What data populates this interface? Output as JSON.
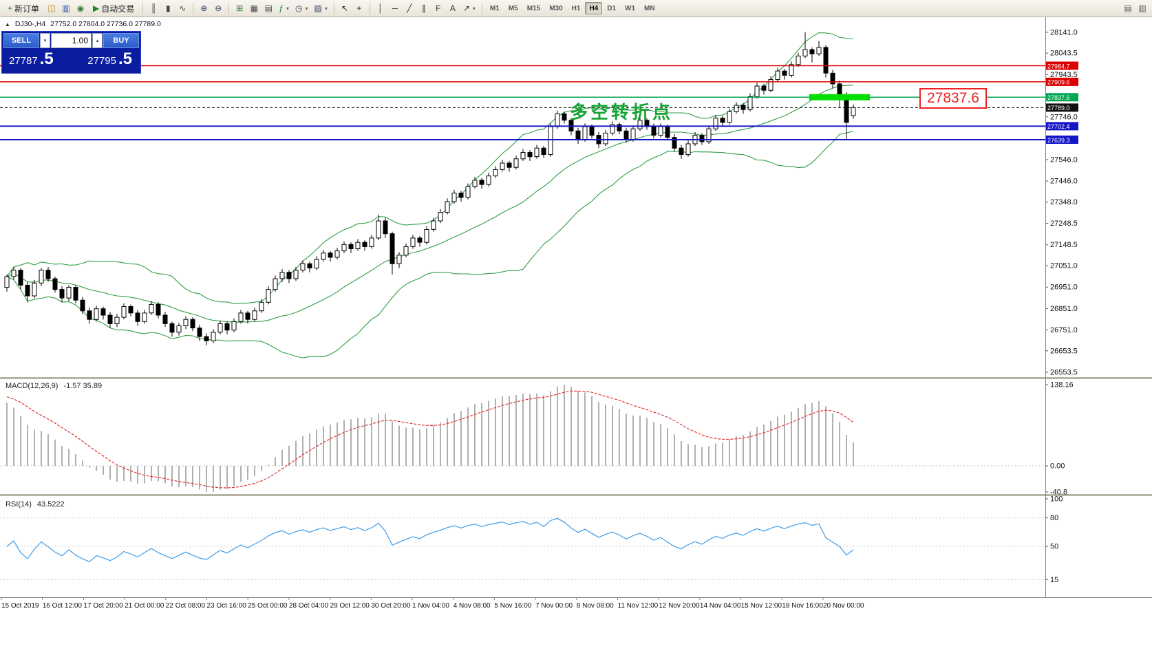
{
  "icons": {
    "one_click_toggle": "▲",
    "up_arrow": "▴",
    "down_arrow": "▾",
    "dropdown": "▾"
  },
  "toolbar": {
    "buttons": [
      {
        "name": "new-order",
        "icon": "new-order-icon",
        "glyph": "+",
        "color": "#1f7a1f",
        "label": "新订单"
      },
      {
        "name": "new-chart",
        "icon": "new-chart-icon",
        "glyph": "◫",
        "color": "#b8860b"
      },
      {
        "name": "market-watch",
        "icon": "market-watch-icon",
        "glyph": "▥",
        "color": "#1f4fa0"
      },
      {
        "name": "navigator",
        "icon": "navigator-icon",
        "glyph": "◉",
        "color": "#2e7d32"
      },
      {
        "name": "auto-trading",
        "icon": "play-icon",
        "glyph": "▶",
        "color": "#17891c",
        "label": "自动交易"
      },
      {
        "sep": true
      },
      {
        "name": "bar-chart-mode",
        "icon": "bar-chart-icon",
        "glyph": "║",
        "color": "#444444"
      },
      {
        "name": "candlestick-mode",
        "icon": "candlestick-icon",
        "glyph": "▮",
        "color": "#444444"
      },
      {
        "name": "line-chart-mode",
        "icon": "line-chart-icon",
        "glyph": "∿",
        "color": "#444444"
      },
      {
        "sep": true
      },
      {
        "name": "zoom-in",
        "icon": "zoom-in-icon",
        "glyph": "⊕",
        "color": "#334466"
      },
      {
        "name": "zoom-out",
        "icon": "zoom-out-icon",
        "glyph": "⊖",
        "color": "#334466"
      },
      {
        "sep": true
      },
      {
        "name": "grid",
        "icon": "grid-icon",
        "glyph": "⊞",
        "color": "#2e7d32"
      },
      {
        "name": "tile-windows",
        "icon": "tile-windows-icon",
        "glyph": "▦",
        "color": "#444444"
      },
      {
        "name": "cascade-windows",
        "icon": "cascade-windows-icon",
        "glyph": "▤",
        "color": "#444444"
      },
      {
        "name": "indicators",
        "icon": "indicators-icon",
        "glyph": "ƒ",
        "color": "#008855",
        "dropdown": true
      },
      {
        "name": "periods",
        "icon": "clock-icon",
        "glyph": "◷",
        "color": "#334466",
        "dropdown": true
      },
      {
        "name": "templates",
        "icon": "templates-icon",
        "glyph": "▨",
        "color": "#334466",
        "dropdown": true
      },
      {
        "sep": true
      },
      {
        "name": "cursor",
        "icon": "cursor-icon",
        "glyph": "↖",
        "color": "#222222"
      },
      {
        "name": "crosshair",
        "icon": "crosshair-icon",
        "glyph": "+",
        "color": "#222222"
      },
      {
        "sep": true
      },
      {
        "name": "vertical-line",
        "icon": "vertical-line-icon",
        "glyph": "│",
        "color": "#333333"
      },
      {
        "name": "horizontal-line",
        "icon": "horizontal-line-icon",
        "glyph": "─",
        "color": "#333333"
      },
      {
        "name": "trendline",
        "icon": "trendline-icon",
        "glyph": "╱",
        "color": "#333333"
      },
      {
        "name": "channel",
        "icon": "channel-icon",
        "glyph": "∥",
        "color": "#333333"
      },
      {
        "name": "fibonacci",
        "icon": "fibonacci-icon",
        "glyph": "F",
        "color": "#333333"
      },
      {
        "name": "text-tool",
        "icon": "text-icon",
        "glyph": "A",
        "color": "#333333"
      },
      {
        "name": "arrows-tool",
        "icon": "arrow-icon",
        "glyph": "↗",
        "color": "#333333",
        "dropdown": true
      },
      {
        "sep": true
      }
    ],
    "timeframes": [
      "M1",
      "M5",
      "M15",
      "M30",
      "H1",
      "H4",
      "D1",
      "W1",
      "MN"
    ],
    "active_timeframe": "H4",
    "right_buttons": [
      {
        "name": "toolbar-extra-1",
        "icon": "panel-icon",
        "glyph": "▤",
        "color": "#555555"
      },
      {
        "name": "toolbar-extra-2",
        "icon": "panel-icon",
        "glyph": "▥",
        "color": "#555555"
      }
    ]
  },
  "chart_header": {
    "symbol": "DJ30-,H4",
    "ohlc": "27752.0 27804.0 27736.0 27789.0"
  },
  "trade_panel": {
    "sell_label": "SELL",
    "buy_label": "BUY",
    "volume": "1.00",
    "sell_price_big": "27787",
    "sell_price_small": ".5",
    "buy_price_big": "27795",
    "buy_price_small": ".5"
  },
  "annotation": {
    "text": "多空转折点",
    "price_label": "27837.6",
    "highlight_price": 27837.6
  },
  "indicators": {
    "macd_label": "MACD(12,26,9)",
    "macd_values": "-1.57 35.89",
    "rsi_label": "RSI(14)",
    "rsi_value": "43.5222"
  },
  "chart_data": {
    "type": "candlestick",
    "symbol": "DJ30-",
    "timeframe": "H4",
    "ylim": [
      26534,
      28208
    ],
    "colors": {
      "bands": "#2f9e44",
      "macd_hist": "#b0b0b0",
      "macd_signal": "#e03030",
      "rsi_line": "#3d9be9",
      "highlight": "#00dd00"
    },
    "bollinger": {
      "period": 20,
      "deviation": 2
    },
    "macd": {
      "params": "12,26,9",
      "ticks": [
        "138.16",
        "0.00",
        "-40.8"
      ]
    },
    "rsi": {
      "period": 14,
      "ticks": [
        "100",
        "80",
        "50",
        "15"
      ]
    },
    "levels": [
      {
        "price": 27984.7,
        "label": "27984.7",
        "color": "#dd0000",
        "width": 1.5
      },
      {
        "price": 27909.6,
        "label": "27909.6",
        "color": "#dd0000",
        "width": 1.5
      },
      {
        "price": 27837.6,
        "label": "27837.6",
        "color": "#00a651",
        "width": 1.5
      },
      {
        "price": 27789.0,
        "label": "27789.0",
        "color": "#111111",
        "width": 1,
        "style": "dashed",
        "current": true
      },
      {
        "price": 27702.4,
        "label": "27702.4",
        "color": "#1515c8",
        "width": 2
      },
      {
        "price": 27639.3,
        "label": "27639.3",
        "color": "#1515c8",
        "width": 2
      }
    ],
    "price_ticks": [
      "28141.0",
      "28043.5",
      "27943.5",
      "27746.0",
      "27546.0",
      "27446.0",
      "27348.0",
      "27248.5",
      "27148.5",
      "27051.0",
      "26951.0",
      "26851.0",
      "26751.0",
      "26653.5",
      "26553.5"
    ],
    "time_labels": [
      "15 Oct 2019",
      "16 Oct 12:00",
      "17 Oct 20:00",
      "21 Oct 00:00",
      "22 Oct 08:00",
      "23 Oct 16:00",
      "25 Oct 00:00",
      "28 Oct 04:00",
      "29 Oct 12:00",
      "30 Oct 20:00",
      "1 Nov 04:00",
      "4 Nov 08:00",
      "5 Nov 16:00",
      "7 Nov 00:00",
      "8 Nov 08:00",
      "11 Nov 12:00",
      "12 Nov 20:00",
      "14 Nov 04:00",
      "15 Nov 12:00",
      "18 Nov 16:00",
      "20 Nov 00:00"
    ],
    "candles": [
      [
        26950,
        27010,
        26930,
        27000
      ],
      [
        27000,
        27045,
        26985,
        27030
      ],
      [
        27030,
        27040,
        26940,
        26960
      ],
      [
        26960,
        26975,
        26880,
        26910
      ],
      [
        26910,
        26985,
        26900,
        26970
      ],
      [
        26970,
        27040,
        26955,
        27030
      ],
      [
        27030,
        27045,
        26975,
        26990
      ],
      [
        26990,
        27000,
        26925,
        26940
      ],
      [
        26940,
        26955,
        26880,
        26900
      ],
      [
        26900,
        26960,
        26885,
        26950
      ],
      [
        26950,
        26960,
        26875,
        26890
      ],
      [
        26890,
        26905,
        26825,
        26840
      ],
      [
        26840,
        26855,
        26780,
        26800
      ],
      [
        26800,
        26865,
        26790,
        26850
      ],
      [
        26850,
        26860,
        26800,
        26820
      ],
      [
        26820,
        26835,
        26760,
        26780
      ],
      [
        26780,
        26825,
        26765,
        26810
      ],
      [
        26810,
        26875,
        26800,
        26860
      ],
      [
        26860,
        26870,
        26815,
        26830
      ],
      [
        26830,
        26845,
        26770,
        26790
      ],
      [
        26790,
        26845,
        26780,
        26830
      ],
      [
        26830,
        26885,
        26820,
        26870
      ],
      [
        26870,
        26880,
        26805,
        26820
      ],
      [
        26820,
        26835,
        26765,
        26780
      ],
      [
        26780,
        26790,
        26720,
        26740
      ],
      [
        26740,
        26785,
        26725,
        26770
      ],
      [
        26770,
        26815,
        26755,
        26800
      ],
      [
        26800,
        26810,
        26745,
        26760
      ],
      [
        26760,
        26775,
        26700,
        26720
      ],
      [
        26720,
        26735,
        26680,
        26700
      ],
      [
        26700,
        26755,
        26690,
        26740
      ],
      [
        26740,
        26795,
        26730,
        26780
      ],
      [
        26780,
        26790,
        26730,
        26750
      ],
      [
        26750,
        26805,
        26740,
        26790
      ],
      [
        26790,
        26845,
        26780,
        26830
      ],
      [
        26830,
        26840,
        26780,
        26800
      ],
      [
        26800,
        26855,
        26790,
        26840
      ],
      [
        26840,
        26895,
        26830,
        26880
      ],
      [
        26880,
        26955,
        26870,
        26940
      ],
      [
        26940,
        27005,
        26930,
        26990
      ],
      [
        26990,
        27035,
        26975,
        27020
      ],
      [
        27020,
        27030,
        26970,
        26990
      ],
      [
        26990,
        27045,
        26980,
        27030
      ],
      [
        27030,
        27075,
        27020,
        27060
      ],
      [
        27060,
        27070,
        27020,
        27040
      ],
      [
        27040,
        27095,
        27030,
        27080
      ],
      [
        27080,
        27125,
        27070,
        27110
      ],
      [
        27110,
        27120,
        27070,
        27090
      ],
      [
        27090,
        27135,
        27080,
        27120
      ],
      [
        27120,
        27165,
        27110,
        27150
      ],
      [
        27150,
        27160,
        27110,
        27130
      ],
      [
        27130,
        27175,
        27120,
        27160
      ],
      [
        27160,
        27170,
        27120,
        27140
      ],
      [
        27140,
        27195,
        27130,
        27180
      ],
      [
        27180,
        27290,
        27170,
        27260
      ],
      [
        27260,
        27275,
        27180,
        27200
      ],
      [
        27200,
        27210,
        27010,
        27060
      ],
      [
        27060,
        27115,
        27040,
        27100
      ],
      [
        27100,
        27155,
        27090,
        27140
      ],
      [
        27140,
        27195,
        27130,
        27180
      ],
      [
        27180,
        27190,
        27140,
        27160
      ],
      [
        27160,
        27235,
        27150,
        27220
      ],
      [
        27220,
        27275,
        27210,
        27260
      ],
      [
        27260,
        27315,
        27250,
        27300
      ],
      [
        27300,
        27365,
        27290,
        27350
      ],
      [
        27350,
        27405,
        27340,
        27390
      ],
      [
        27390,
        27400,
        27350,
        27370
      ],
      [
        27370,
        27435,
        27360,
        27420
      ],
      [
        27420,
        27465,
        27410,
        27450
      ],
      [
        27450,
        27460,
        27410,
        27430
      ],
      [
        27430,
        27485,
        27420,
        27470
      ],
      [
        27470,
        27515,
        27460,
        27500
      ],
      [
        27500,
        27545,
        27490,
        27530
      ],
      [
        27530,
        27540,
        27490,
        27510
      ],
      [
        27510,
        27565,
        27500,
        27550
      ],
      [
        27550,
        27595,
        27540,
        27580
      ],
      [
        27580,
        27590,
        27540,
        27560
      ],
      [
        27560,
        27615,
        27550,
        27600
      ],
      [
        27600,
        27610,
        27555,
        27570
      ],
      [
        27570,
        27715,
        27560,
        27700
      ],
      [
        27700,
        27775,
        27690,
        27760
      ],
      [
        27760,
        27770,
        27715,
        27730
      ],
      [
        27730,
        27740,
        27660,
        27680
      ],
      [
        27680,
        27695,
        27620,
        27640
      ],
      [
        27640,
        27715,
        27630,
        27700
      ],
      [
        27700,
        27710,
        27645,
        27660
      ],
      [
        27660,
        27675,
        27600,
        27620
      ],
      [
        27620,
        27685,
        27610,
        27670
      ],
      [
        27670,
        27725,
        27660,
        27710
      ],
      [
        27710,
        27720,
        27665,
        27680
      ],
      [
        27680,
        27695,
        27625,
        27640
      ],
      [
        27640,
        27705,
        27630,
        27690
      ],
      [
        27690,
        27745,
        27680,
        27730
      ],
      [
        27730,
        27740,
        27685,
        27700
      ],
      [
        27700,
        27715,
        27645,
        27660
      ],
      [
        27660,
        27715,
        27650,
        27700
      ],
      [
        27700,
        27710,
        27635,
        27650
      ],
      [
        27650,
        27665,
        27585,
        27600
      ],
      [
        27600,
        27615,
        27550,
        27570
      ],
      [
        27570,
        27635,
        27560,
        27620
      ],
      [
        27620,
        27675,
        27610,
        27660
      ],
      [
        27660,
        27670,
        27615,
        27630
      ],
      [
        27630,
        27705,
        27620,
        27690
      ],
      [
        27690,
        27755,
        27680,
        27740
      ],
      [
        27740,
        27750,
        27700,
        27720
      ],
      [
        27720,
        27785,
        27710,
        27770
      ],
      [
        27770,
        27815,
        27760,
        27800
      ],
      [
        27800,
        27810,
        27760,
        27780
      ],
      [
        27780,
        27855,
        27770,
        27840
      ],
      [
        27840,
        27905,
        27830,
        27890
      ],
      [
        27890,
        27900,
        27850,
        27870
      ],
      [
        27870,
        27935,
        27860,
        27920
      ],
      [
        27920,
        27975,
        27910,
        27960
      ],
      [
        27960,
        27970,
        27920,
        27940
      ],
      [
        27940,
        28005,
        27930,
        27990
      ],
      [
        27990,
        28045,
        27980,
        28030
      ],
      [
        28030,
        28141,
        28020,
        28060
      ],
      [
        28060,
        28070,
        28000,
        28040
      ],
      [
        28040,
        28100,
        28030,
        28070
      ],
      [
        28070,
        28080,
        27930,
        27950
      ],
      [
        27950,
        27965,
        27880,
        27900
      ],
      [
        27900,
        27915,
        27790,
        27850
      ],
      [
        27850,
        27860,
        27640,
        27720
      ],
      [
        27752,
        27804,
        27736,
        27789
      ]
    ]
  }
}
